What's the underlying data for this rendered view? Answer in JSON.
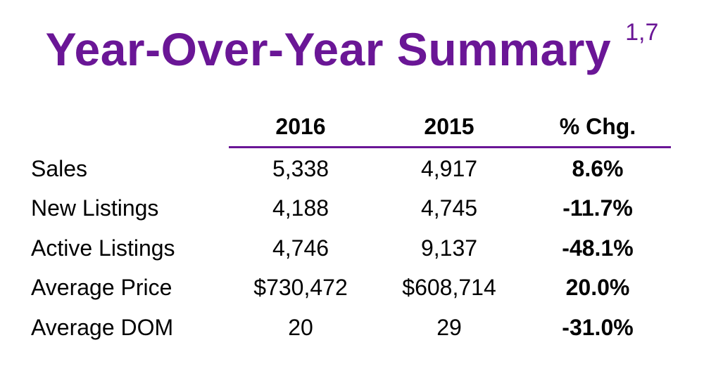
{
  "title": "Year-Over-Year Summary",
  "title_superscript": "1,7",
  "colors": {
    "accent": "#6a1696"
  },
  "table": {
    "headers": [
      "2016",
      "2015",
      "% Chg."
    ],
    "rows": [
      {
        "label": "Sales",
        "y2016": "5,338",
        "y2015": "4,917",
        "change": "8.6%"
      },
      {
        "label": "New Listings",
        "y2016": "4,188",
        "y2015": "4,745",
        "change": "-11.7%"
      },
      {
        "label": "Active Listings",
        "y2016": "4,746",
        "y2015": "9,137",
        "change": "-48.1%"
      },
      {
        "label": "Average Price",
        "y2016": "$730,472",
        "y2015": "$608,714",
        "change": "20.0%"
      },
      {
        "label": "Average DOM",
        "y2016": "20",
        "y2015": "29",
        "change": "-31.0%"
      }
    ]
  }
}
